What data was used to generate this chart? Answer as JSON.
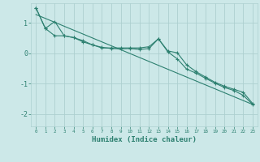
{
  "xlabel": "Humidex (Indice chaleur)",
  "bg_color": "#cce8e8",
  "line_color": "#2d8070",
  "grid_color": "#add0d0",
  "xlim": [
    -0.5,
    23.5
  ],
  "ylim": [
    -2.4,
    1.65
  ],
  "yticks": [
    -2,
    -1,
    0,
    1
  ],
  "xticks": [
    0,
    1,
    2,
    3,
    4,
    5,
    6,
    7,
    8,
    9,
    10,
    11,
    12,
    13,
    14,
    15,
    16,
    17,
    18,
    19,
    20,
    21,
    22,
    23
  ],
  "series1_x": [
    0,
    1,
    2,
    3,
    4,
    5,
    6,
    7,
    8,
    9,
    10,
    11,
    12,
    13,
    14,
    15,
    16,
    17,
    18,
    19,
    20,
    21,
    22,
    23
  ],
  "series1_y": [
    1.5,
    0.82,
    1.05,
    0.58,
    0.52,
    0.42,
    0.28,
    0.18,
    0.18,
    0.18,
    0.18,
    0.18,
    0.22,
    0.48,
    0.08,
    0.02,
    -0.38,
    -0.6,
    -0.78,
    -0.95,
    -1.08,
    -1.18,
    -1.28,
    -1.65
  ],
  "series2_x": [
    0,
    1,
    2,
    3,
    4,
    5,
    6,
    7,
    8,
    9,
    10,
    11,
    12,
    13,
    14,
    15,
    16,
    17,
    18,
    19,
    20,
    21,
    22,
    23
  ],
  "series2_y": [
    1.5,
    0.82,
    0.58,
    0.58,
    0.52,
    0.38,
    0.28,
    0.2,
    0.16,
    0.15,
    0.16,
    0.13,
    0.16,
    0.48,
    0.05,
    -0.18,
    -0.52,
    -0.65,
    -0.82,
    -0.98,
    -1.12,
    -1.22,
    -1.38,
    -1.68
  ],
  "trend_x": [
    0,
    23
  ],
  "trend_y": [
    1.28,
    -1.68
  ]
}
